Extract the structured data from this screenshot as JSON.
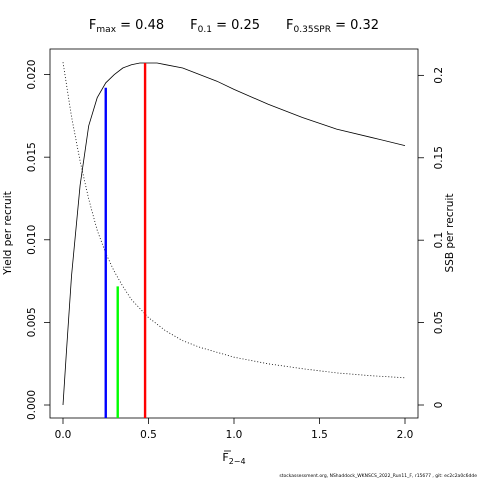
{
  "chart_data": {
    "type": "line",
    "title_parts": [
      {
        "base": "F",
        "sub": "max",
        "value": "0.48"
      },
      {
        "base": "F",
        "sub": "0.1",
        "value": "0.25"
      },
      {
        "base": "F",
        "sub": "0.35SPR",
        "value": "0.32"
      }
    ],
    "xlabel": {
      "base": "F",
      "sub": "2−4",
      "overline": true
    },
    "ylabel_left": "Yield per recruit",
    "ylabel_right": "SSB per recruit",
    "xlim": [
      0,
      2
    ],
    "ylim_left": [
      0,
      0.0207
    ],
    "ylim_right": [
      0,
      0.2075
    ],
    "x_ticks": [
      "0.0",
      "0.5",
      "1.0",
      "1.5",
      "2.0"
    ],
    "y_ticks_left": [
      "0.000",
      "0.005",
      "0.010",
      "0.015",
      "0.020"
    ],
    "y_ticks_right": [
      "0",
      "0.05",
      "0.1",
      "0.15",
      "0.2"
    ],
    "series": [
      {
        "axis": "left",
        "style": "solid",
        "x": [
          0,
          0.02,
          0.05,
          0.1,
          0.15,
          0.2,
          0.25,
          0.3,
          0.35,
          0.4,
          0.45,
          0.48,
          0.55,
          0.6,
          0.7,
          0.8,
          0.9,
          1.0,
          1.2,
          1.4,
          1.6,
          1.8,
          2.0
        ],
        "y": [
          0,
          0.0032,
          0.0078,
          0.0133,
          0.0169,
          0.0186,
          0.0195,
          0.02,
          0.0204,
          0.0206,
          0.0207,
          0.0207,
          0.0207,
          0.0206,
          0.0204,
          0.02,
          0.0196,
          0.0191,
          0.0182,
          0.0174,
          0.0167,
          0.0162,
          0.0157
        ]
      },
      {
        "axis": "right",
        "style": "dotted",
        "x": [
          0,
          0.05,
          0.1,
          0.15,
          0.2,
          0.25,
          0.3,
          0.35,
          0.4,
          0.5,
          0.6,
          0.7,
          0.8,
          1.0,
          1.2,
          1.4,
          1.6,
          1.8,
          2.0
        ],
        "y": [
          0.208,
          0.175,
          0.148,
          0.125,
          0.106,
          0.092,
          0.081,
          0.072,
          0.064,
          0.053,
          0.045,
          0.039,
          0.035,
          0.029,
          0.025,
          0.022,
          0.0195,
          0.0178,
          0.0165
        ]
      }
    ],
    "reference_lines": [
      {
        "x": 0.25,
        "y_top": 0.0192,
        "axis": "left",
        "color": "#0000ff"
      },
      {
        "x": 0.32,
        "y_top": 0.072,
        "axis": "right",
        "color": "#00ff00"
      },
      {
        "x": 0.48,
        "y_top": 0.0207,
        "axis": "left",
        "color": "#ff0000"
      }
    ],
    "footer": "stockassessment.org, NShaddock_WKNSCS_2022_Run11_F, r15677 , git: ec2c2a0c6dde"
  }
}
